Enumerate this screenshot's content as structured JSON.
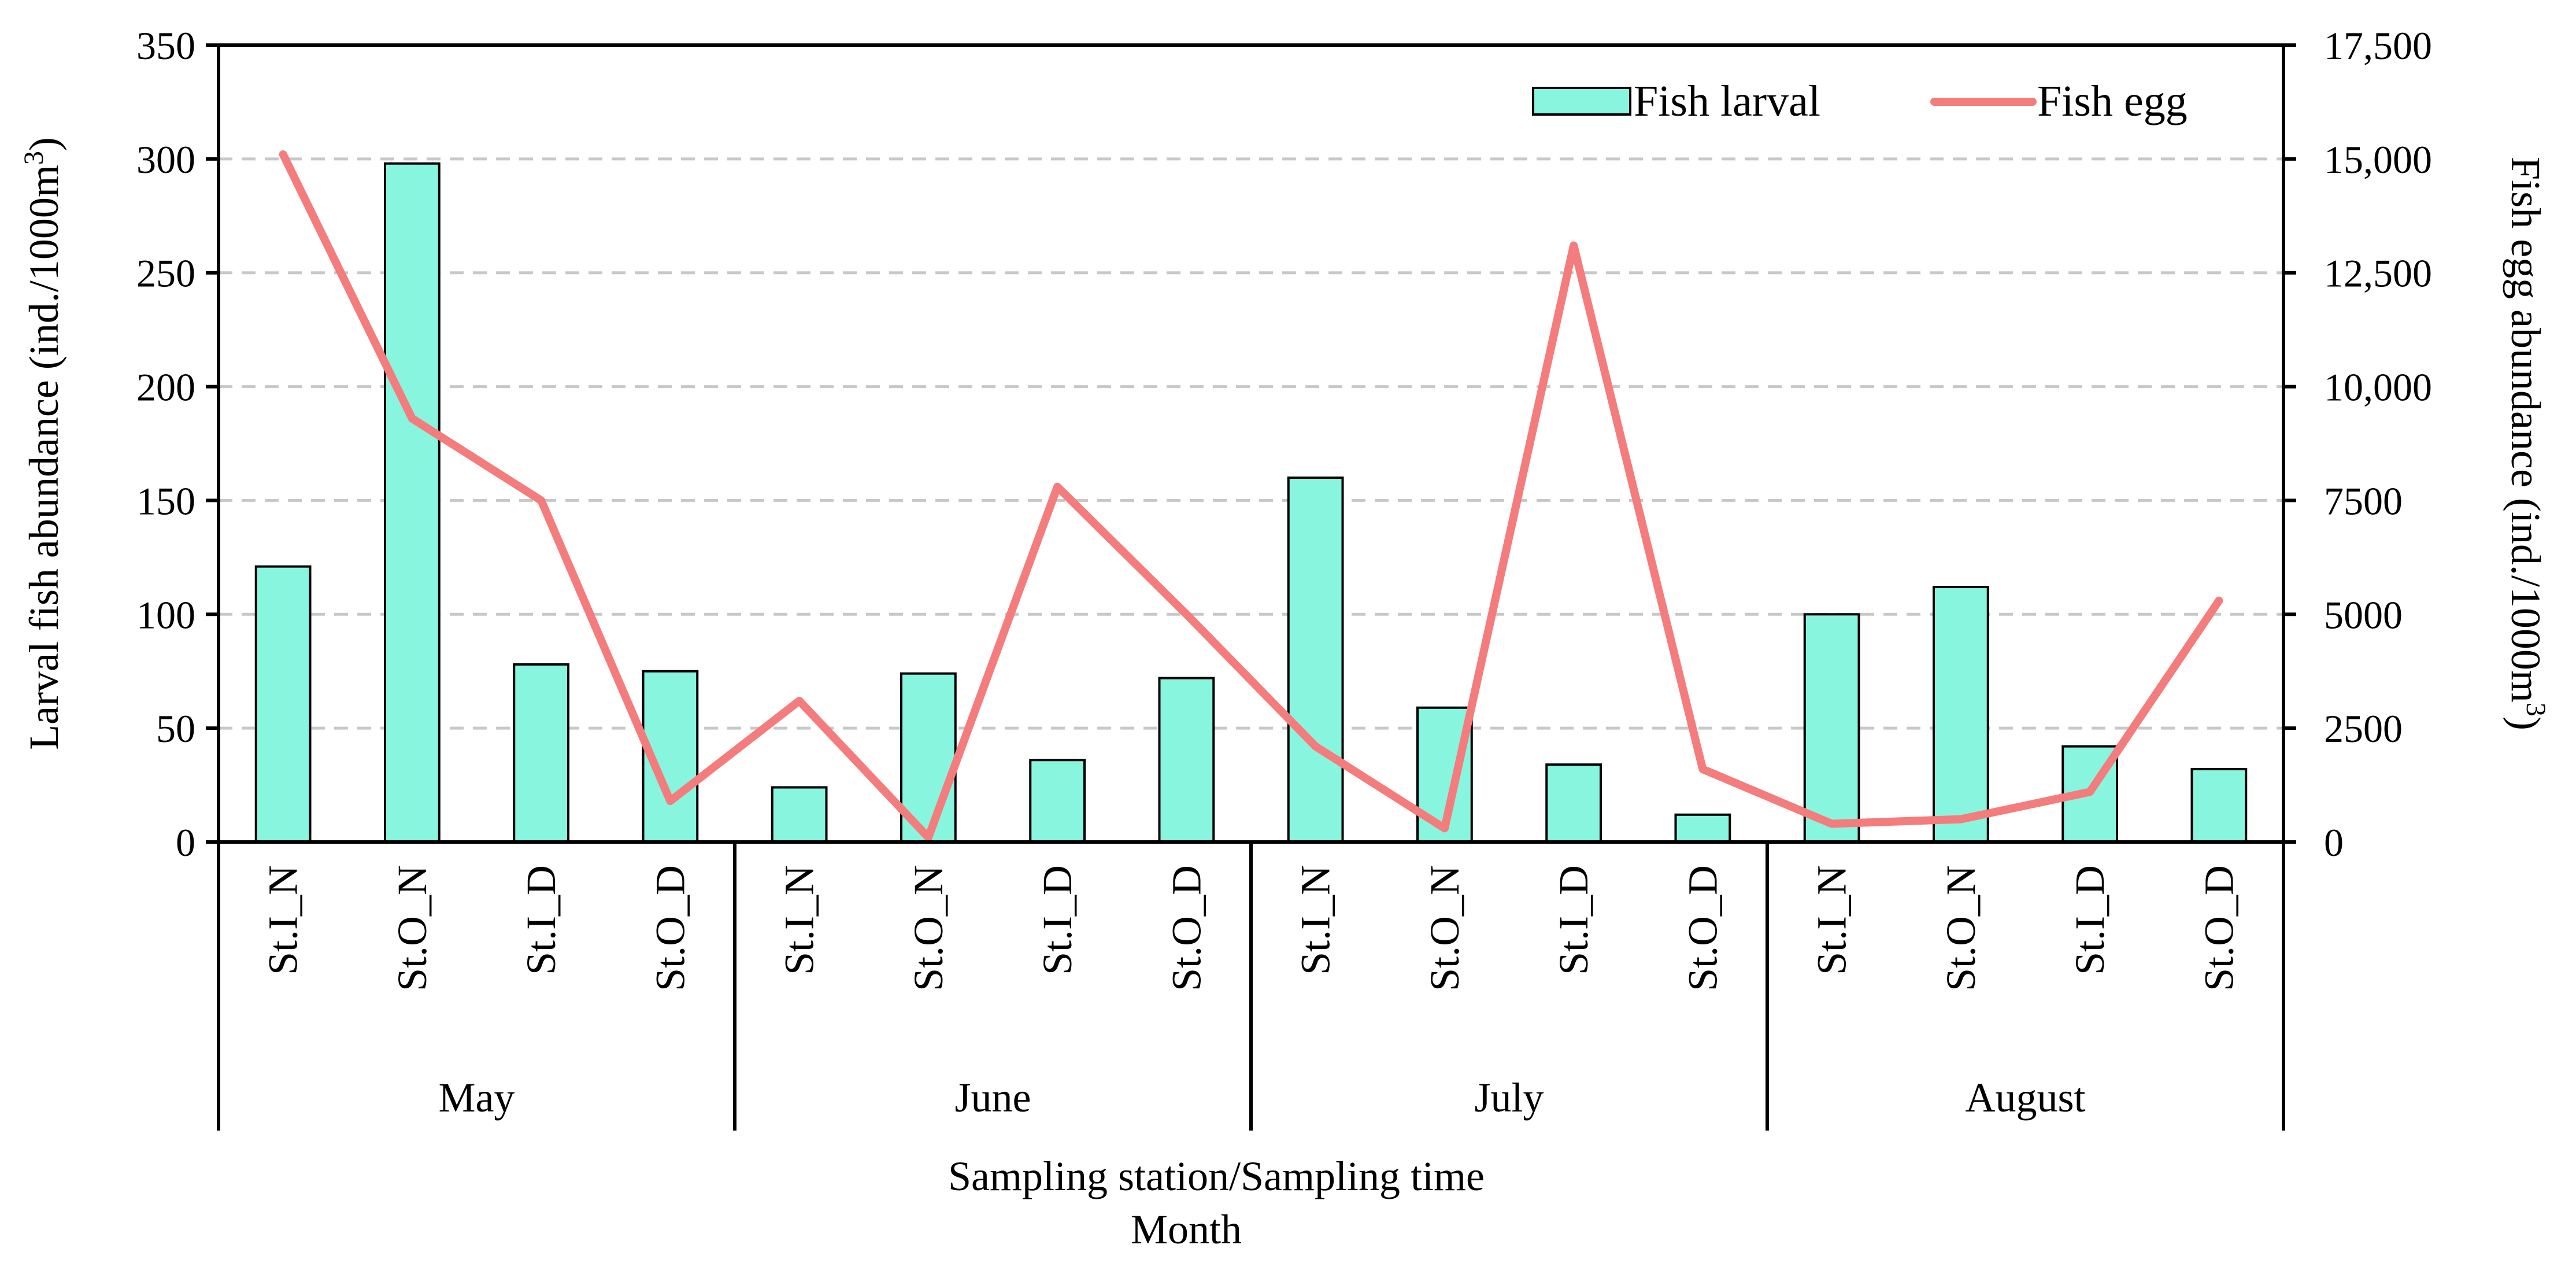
{
  "chart_data": {
    "type": "bar+line",
    "categories": [
      "St.I_N",
      "St.O_N",
      "St.I_D",
      "St.O_D",
      "St.I_N",
      "St.O_N",
      "St.I_D",
      "St.O_D",
      "St.I_N",
      "St.O_N",
      "St.I_D",
      "St.O_D",
      "St.I_N",
      "St.O_N",
      "St.I_D",
      "St.O_D"
    ],
    "groups": [
      {
        "label": "May",
        "count": 4
      },
      {
        "label": "June",
        "count": 4
      },
      {
        "label": "July",
        "count": 4
      },
      {
        "label": "August",
        "count": 4
      }
    ],
    "series": [
      {
        "name": "Fish larval",
        "type": "bar",
        "axis": "left",
        "color": "#88F5DF",
        "values": [
          121,
          298,
          78,
          75,
          24,
          74,
          36,
          72,
          160,
          59,
          34,
          12,
          100,
          112,
          42,
          32
        ]
      },
      {
        "name": "Fish egg",
        "type": "line",
        "axis": "right",
        "color": "#F47C7C",
        "values": [
          15100,
          9300,
          7500,
          900,
          3100,
          100,
          7800,
          5000,
          2100,
          300,
          13100,
          1600,
          400,
          500,
          1100,
          5300
        ]
      }
    ],
    "left_axis": {
      "label": "Larval fish abundance (ind./1000m",
      "label_sup": "3",
      "label_end": ")",
      "ylim": [
        0,
        350
      ],
      "ticks": [
        0,
        50,
        100,
        150,
        200,
        250,
        300,
        350
      ],
      "tick_labels": [
        "0",
        "50",
        "100",
        "150",
        "200",
        "250",
        "300",
        "350"
      ]
    },
    "right_axis": {
      "label": "Fish egg abundance  (ind./1000m",
      "label_sup": "3",
      "label_end": ")",
      "ylim": [
        0,
        17500
      ],
      "ticks": [
        0,
        2500,
        5000,
        7500,
        10000,
        12500,
        15000,
        17500
      ],
      "tick_labels": [
        "0",
        "2500",
        "5000",
        "7500",
        "10,000",
        "12,500",
        "15,000",
        "17,500"
      ]
    },
    "xlabel_line1": "Sampling station/Sampling time",
    "xlabel_line2": "Month",
    "grid": true,
    "legend_position": "top-right"
  }
}
